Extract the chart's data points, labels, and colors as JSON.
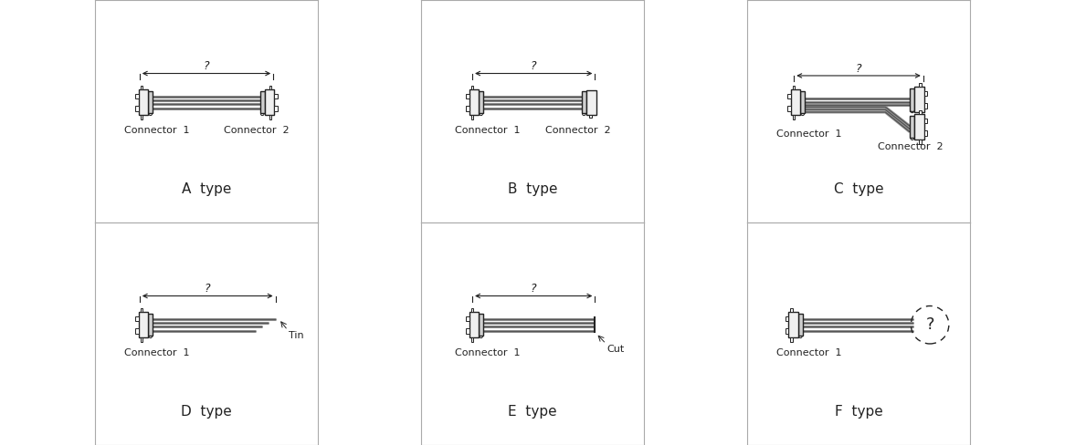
{
  "bg_color": "#ffffff",
  "line_color": "#222222",
  "fill_color": "#f0f0f0",
  "dark_fill": "#d0d0d0",
  "wire_color": "#555555",
  "wire_light": "#999999",
  "grid_color": "#aaaaaa",
  "title_fontsize": 11,
  "label_fontsize": 8,
  "panels": [
    {
      "type": "A",
      "label": "A  type",
      "conn1": "Connector  1",
      "conn2": "Connector  2",
      "has_dim": true
    },
    {
      "type": "B",
      "label": "B  type",
      "conn1": "Connector  1",
      "conn2": "Connector  2",
      "has_dim": true
    },
    {
      "type": "C",
      "label": "C  type",
      "conn1": "Connector  1",
      "conn2": "Connector  2",
      "has_dim": true
    },
    {
      "type": "D",
      "label": "D  type",
      "conn1": "Connector  1",
      "conn2": "Tin",
      "has_dim": true
    },
    {
      "type": "E",
      "label": "E  type",
      "conn1": "Connector  1",
      "conn2": "Cut",
      "has_dim": true
    },
    {
      "type": "F",
      "label": "F  type",
      "conn1": "Connector  1",
      "conn2": "",
      "has_dim": false
    }
  ]
}
